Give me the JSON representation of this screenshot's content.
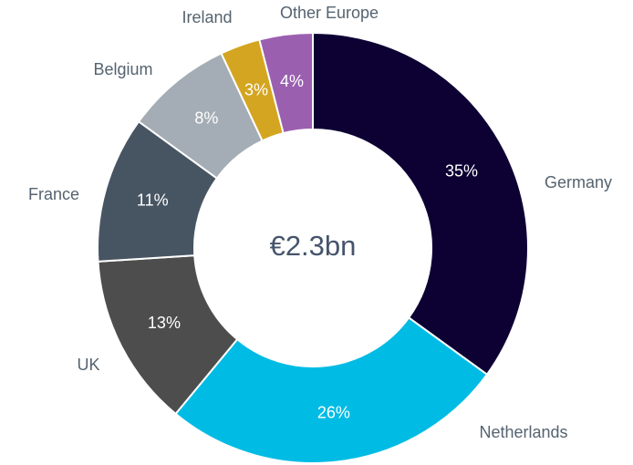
{
  "chart_data": {
    "type": "donut",
    "center_label": "€2.3bn",
    "categories": [
      "Germany",
      "Netherlands",
      "UK",
      "France",
      "Belgium",
      "Ireland",
      "Other Europe"
    ],
    "values": [
      35,
      26,
      13,
      11,
      8,
      3,
      4
    ],
    "value_labels": [
      "35%",
      "26%",
      "13%",
      "11%",
      "8%",
      "3%",
      "4%"
    ],
    "colors": [
      "#0d0033",
      "#00bce4",
      "#4d4d4d",
      "#475563",
      "#a4adb5",
      "#d4a520",
      "#9b5fb0"
    ]
  }
}
